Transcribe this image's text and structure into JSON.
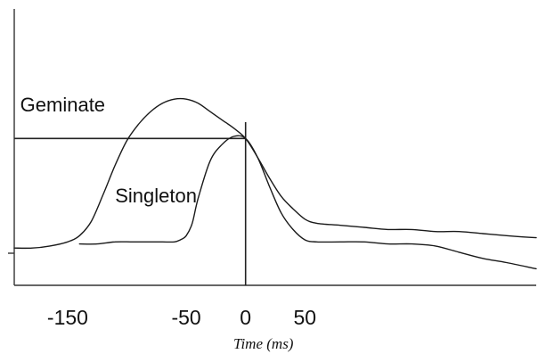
{
  "chart_data": {
    "type": "line",
    "title": "",
    "xlabel": "Time (ms)",
    "ylabel": "",
    "xlim": [
      -195,
      245
    ],
    "ylim": [
      0,
      1
    ],
    "xticks": [
      {
        "value": -150,
        "label": "-150"
      },
      {
        "value": -50,
        "label": "-50"
      },
      {
        "value": 0,
        "label": "0"
      },
      {
        "value": 50,
        "label": "50"
      }
    ],
    "grid": false,
    "series": [
      {
        "name": "Geminate",
        "x": [
          -195,
          -180,
          -165,
          -150,
          -140,
          -130,
          -120,
          -110,
          -100,
          -90,
          -80,
          -70,
          -60,
          -50,
          -40,
          -30,
          -20,
          -10,
          0,
          10,
          20,
          30,
          40,
          50,
          60,
          80,
          100,
          120,
          140,
          160,
          180,
          200,
          220,
          245
        ],
        "y": [
          0.18,
          0.18,
          0.19,
          0.21,
          0.24,
          0.31,
          0.44,
          0.58,
          0.7,
          0.78,
          0.84,
          0.88,
          0.9,
          0.9,
          0.88,
          0.84,
          0.8,
          0.76,
          0.71,
          0.62,
          0.52,
          0.43,
          0.37,
          0.32,
          0.3,
          0.29,
          0.28,
          0.27,
          0.27,
          0.26,
          0.26,
          0.25,
          0.24,
          0.23
        ]
      },
      {
        "name": "Singleton",
        "x": [
          -140,
          -125,
          -110,
          -95,
          -80,
          -70,
          -60,
          -55,
          -50,
          -45,
          -40,
          -30,
          -20,
          -10,
          0,
          10,
          20,
          30,
          40,
          50,
          60,
          80,
          100,
          120,
          140,
          160,
          180,
          200,
          220,
          245
        ],
        "y": [
          0.2,
          0.2,
          0.21,
          0.21,
          0.21,
          0.21,
          0.21,
          0.22,
          0.24,
          0.3,
          0.42,
          0.6,
          0.68,
          0.72,
          0.71,
          0.62,
          0.48,
          0.35,
          0.27,
          0.22,
          0.21,
          0.21,
          0.21,
          0.2,
          0.2,
          0.19,
          0.16,
          0.13,
          0.11,
          0.08
        ]
      }
    ],
    "reference_lines": {
      "horizontal_y": 0.71,
      "vertical_x": 0
    },
    "labels": [
      {
        "text": "Geminate",
        "x": -190,
        "y": 0.84
      },
      {
        "text": "Singleton",
        "x": -110,
        "y": 0.4
      }
    ]
  }
}
